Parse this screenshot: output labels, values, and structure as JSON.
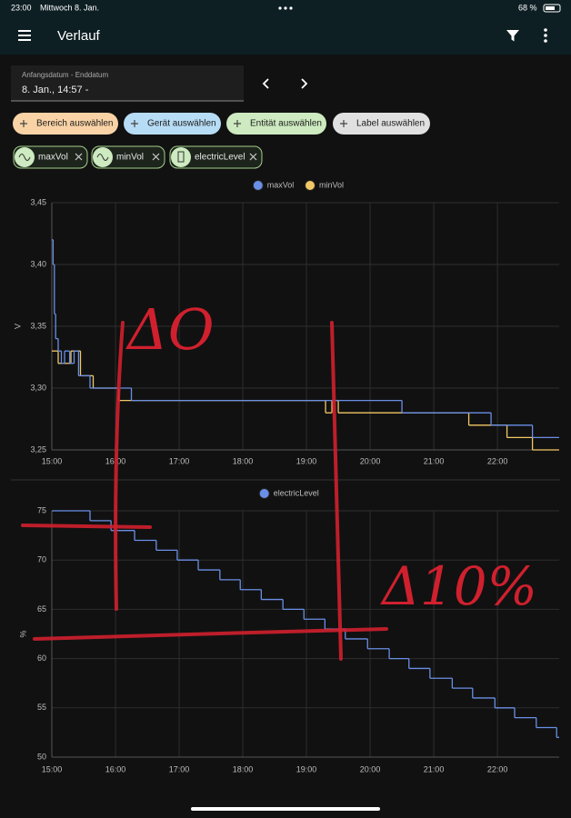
{
  "status_bar": {
    "time": "23:00",
    "date": "Mittwoch 8. Jan.",
    "battery": "68 %"
  },
  "header": {
    "title": "Verlauf"
  },
  "date_picker": {
    "label": "Anfangsdatum - Enddatum",
    "value": "8. Jan., 14:57 -"
  },
  "filters": [
    "Bereich auswählen",
    "Gerät auswählen",
    "Entität auswählen",
    "Label auswählen"
  ],
  "entities": [
    "maxVol",
    "minVol",
    "electricLevel"
  ],
  "annotations": [
    "ΔO",
    "Δ10%"
  ],
  "chart_data": [
    {
      "type": "line",
      "step": true,
      "y_label": "V",
      "grid": true,
      "xlim": [
        15,
        22.97
      ],
      "xticks": [
        {
          "value": 15,
          "label": "15:00"
        },
        {
          "value": 16,
          "label": "16:00"
        },
        {
          "value": 17,
          "label": "17:00"
        },
        {
          "value": 18,
          "label": "18:00"
        },
        {
          "value": 19,
          "label": "19:00"
        },
        {
          "value": 20,
          "label": "20:00"
        },
        {
          "value": 21,
          "label": "21:00"
        },
        {
          "value": 22,
          "label": "22:00"
        }
      ],
      "ylim": [
        3.25,
        3.45
      ],
      "yticks": [
        {
          "value": 3.25,
          "label": "3,25"
        },
        {
          "value": 3.3,
          "label": "3,30"
        },
        {
          "value": 3.35,
          "label": "3,35"
        },
        {
          "value": 3.4,
          "label": "3,40"
        },
        {
          "value": 3.45,
          "label": "3,45"
        }
      ],
      "series": [
        {
          "name": "maxVol",
          "color": "#6a8fe6",
          "x": [
            15,
            15.02,
            15.04,
            15.06,
            15.1,
            15.15,
            15.2,
            15.28,
            15.35,
            15.42,
            15.6,
            16.25,
            20.5,
            21.9,
            22.55
          ],
          "values": [
            3.42,
            3.4,
            3.36,
            3.34,
            3.33,
            3.32,
            3.33,
            3.32,
            3.33,
            3.31,
            3.3,
            3.29,
            3.28,
            3.27,
            3.26
          ]
        },
        {
          "name": "minVol",
          "color": "#f2c866",
          "x": [
            15,
            15.1,
            15.3,
            15.45,
            15.65,
            16.05,
            19.3,
            19.4,
            19.5,
            21.55,
            22.15,
            22.55
          ],
          "values": [
            3.33,
            3.32,
            3.33,
            3.31,
            3.3,
            3.29,
            3.28,
            3.29,
            3.28,
            3.27,
            3.26,
            3.25
          ]
        }
      ]
    },
    {
      "type": "line",
      "step": true,
      "y_label": "%",
      "grid": true,
      "xlim": [
        15,
        22.97
      ],
      "xticks": [
        {
          "value": 15,
          "label": "15:00"
        },
        {
          "value": 16,
          "label": "16:00"
        },
        {
          "value": 17,
          "label": "17:00"
        },
        {
          "value": 18,
          "label": "18:00"
        },
        {
          "value": 19,
          "label": "19:00"
        },
        {
          "value": 20,
          "label": "20:00"
        },
        {
          "value": 21,
          "label": "21:00"
        },
        {
          "value": 22,
          "label": "22:00"
        }
      ],
      "ylim": [
        50,
        75
      ],
      "yticks": [
        50,
        55,
        60,
        65,
        70,
        75
      ],
      "series": [
        {
          "name": "electricLevel",
          "color": "#6a8fe6",
          "x": [
            15,
            15.6,
            15.93,
            16.3,
            16.64,
            16.97,
            17.3,
            17.64,
            17.96,
            18.29,
            18.63,
            18.96,
            19.29,
            19.61,
            19.96,
            20.3,
            20.61,
            20.94,
            21.29,
            21.61,
            21.96,
            22.27,
            22.61,
            22.93
          ],
          "values": [
            75,
            74,
            73,
            72,
            71,
            70,
            69,
            68,
            67,
            66,
            65,
            64,
            63,
            62,
            61,
            60,
            59,
            58,
            57,
            56,
            55,
            54,
            53,
            52
          ]
        }
      ]
    }
  ]
}
